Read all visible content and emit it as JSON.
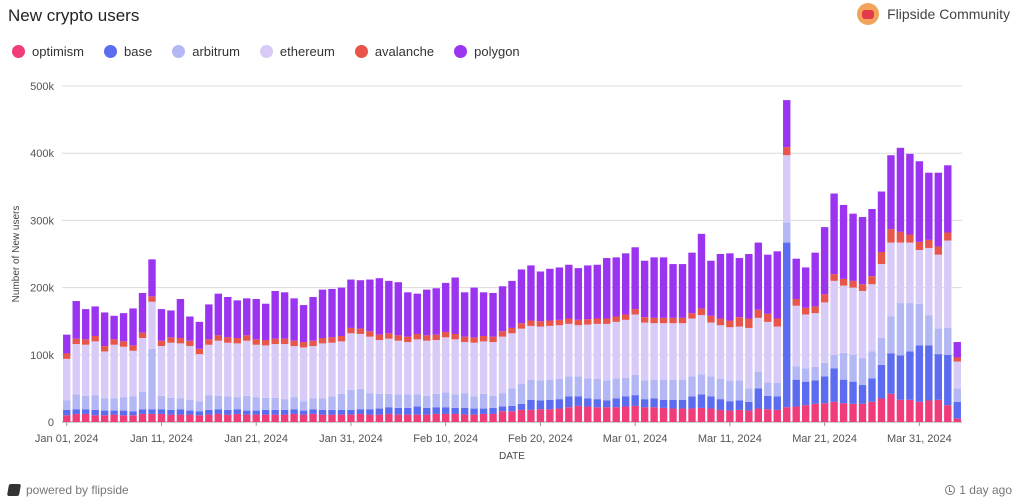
{
  "header": {
    "title": "New crypto users",
    "brand": "Flipside Community",
    "brand_icon": "flipside-community-avatar-icon"
  },
  "footer": {
    "powered_by": "powered by flipside",
    "updated": "1 day ago"
  },
  "colors": {
    "optimism": "#f03c7a",
    "base": "#5b6cf0",
    "arbitrum": "#b3b8f5",
    "ethereum": "#d9cbf7",
    "avalanche": "#e8554a",
    "polygon": "#9a34f0"
  },
  "chart_data": {
    "type": "bar",
    "stacked": true,
    "xlabel": "DATE",
    "ylabel": "Number of New users",
    "ylim": [
      0,
      500000
    ],
    "y_ticks": [
      0,
      100000,
      200000,
      300000,
      400000,
      500000
    ],
    "y_tick_labels": [
      "0",
      "100k",
      "200k",
      "300k",
      "400k",
      "500k"
    ],
    "x_tick_labels": [
      "Jan 01, 2024",
      "Jan 11, 2024",
      "Jan 21, 2024",
      "Jan 31, 2024",
      "Feb 10, 2024",
      "Feb 20, 2024",
      "Mar 01, 2024",
      "Mar 11, 2024",
      "Mar 21, 2024",
      "Mar 31, 2024"
    ],
    "x_tick_index": [
      0,
      10,
      20,
      30,
      40,
      50,
      60,
      70,
      80,
      90
    ],
    "legend_position": "top-left",
    "grid": true,
    "start_date": "2024-01-01",
    "series": [
      {
        "name": "optimism",
        "values": [
          10000,
          12000,
          12000,
          10000,
          10000,
          11000,
          10000,
          10000,
          12000,
          12000,
          12000,
          11000,
          11000,
          11000,
          10000,
          11000,
          12000,
          11000,
          12000,
          11000,
          11000,
          11000,
          11000,
          11000,
          12000,
          11000,
          12000,
          11000,
          11000,
          11000,
          11000,
          12000,
          11000,
          11000,
          12000,
          11000,
          11000,
          11000,
          11000,
          12000,
          12000,
          12000,
          11000,
          11000,
          12000,
          12000,
          16000,
          16000,
          18000,
          18000,
          19000,
          19000,
          20000,
          22000,
          24000,
          23000,
          22000,
          22000,
          22000,
          23000,
          24000,
          22000,
          22000,
          21000,
          20000,
          20000,
          20000,
          21000,
          20000,
          18000,
          17000,
          18000,
          17000,
          20000,
          19000,
          18000,
          22000,
          23000,
          25000,
          27000,
          28000,
          30000,
          28000,
          27000,
          27000,
          30000,
          35000,
          42000,
          33000,
          33000,
          30000,
          32000,
          33000,
          25000,
          5000
        ]
      },
      {
        "name": "base",
        "values": [
          8000,
          7000,
          7000,
          8000,
          7000,
          6000,
          7000,
          6000,
          7000,
          7000,
          7000,
          7000,
          8000,
          6000,
          6000,
          7000,
          7000,
          7000,
          7000,
          6000,
          6000,
          7000,
          7000,
          7000,
          7000,
          6000,
          7000,
          7000,
          7000,
          7000,
          7000,
          7000,
          8000,
          9000,
          10000,
          10000,
          10000,
          12000,
          10000,
          10000,
          10000,
          9000,
          10000,
          9000,
          8000,
          9000,
          7000,
          8000,
          9000,
          15000,
          13000,
          14000,
          14000,
          16000,
          14000,
          12000,
          12000,
          10000,
          13000,
          15000,
          16000,
          12000,
          13000,
          12000,
          13000,
          13000,
          18000,
          20000,
          18000,
          16000,
          14000,
          14000,
          13000,
          30000,
          20000,
          20000,
          245000,
          40000,
          35000,
          35000,
          40000,
          50000,
          35000,
          33000,
          28000,
          35000,
          50000,
          60000,
          66000,
          72000,
          84000,
          82000,
          68000,
          75000,
          25000
        ]
      },
      {
        "name": "arbitrum",
        "values": [
          14000,
          22000,
          20000,
          22000,
          18000,
          18000,
          20000,
          22000,
          26000,
          90000,
          20000,
          18000,
          16000,
          16000,
          15000,
          22000,
          20000,
          20000,
          18000,
          22000,
          20000,
          18000,
          18000,
          16000,
          18000,
          14000,
          16000,
          17000,
          20000,
          24000,
          30000,
          30000,
          24000,
          22000,
          20000,
          20000,
          20000,
          18000,
          18000,
          20000,
          22000,
          20000,
          22000,
          18000,
          22000,
          18000,
          20000,
          26000,
          30000,
          30000,
          30000,
          30000,
          30000,
          30000,
          30000,
          30000,
          30000,
          30000,
          30000,
          28000,
          30000,
          28000,
          28000,
          30000,
          30000,
          30000,
          30000,
          30000,
          30000,
          30000,
          30000,
          30000,
          20000,
          25000,
          20000,
          20000,
          30000,
          20000,
          20000,
          20000,
          20000,
          20000,
          40000,
          40000,
          40000,
          40000,
          40000,
          55000,
          78000,
          72000,
          62000,
          45000,
          38000,
          40000,
          20000
        ]
      },
      {
        "name": "ethereum",
        "values": [
          62000,
          75000,
          76000,
          80000,
          70000,
          80000,
          75000,
          68000,
          80000,
          70000,
          74000,
          82000,
          82000,
          80000,
          70000,
          75000,
          82000,
          80000,
          80000,
          82000,
          78000,
          78000,
          80000,
          82000,
          76000,
          80000,
          78000,
          82000,
          80000,
          78000,
          84000,
          82000,
          84000,
          80000,
          82000,
          80000,
          78000,
          82000,
          82000,
          80000,
          82000,
          82000,
          76000,
          80000,
          78000,
          80000,
          84000,
          82000,
          82000,
          80000,
          80000,
          80000,
          80000,
          78000,
          76000,
          80000,
          82000,
          84000,
          84000,
          86000,
          90000,
          86000,
          84000,
          84000,
          84000,
          84000,
          86000,
          88000,
          80000,
          80000,
          80000,
          80000,
          90000,
          80000,
          90000,
          84000,
          100000,
          90000,
          80000,
          80000,
          90000,
          110000,
          100000,
          100000,
          100000,
          100000,
          110000,
          110000,
          90000,
          90000,
          80000,
          100000,
          110000,
          130000,
          40000
        ]
      },
      {
        "name": "avalanche",
        "values": [
          8000,
          8000,
          8000,
          8000,
          8000,
          8000,
          8000,
          8000,
          8000,
          8000,
          8000,
          8000,
          8000,
          8000,
          8000,
          8000,
          8000,
          8000,
          8000,
          8000,
          8000,
          8000,
          8000,
          8000,
          8000,
          8000,
          8000,
          8000,
          8000,
          8000,
          8000,
          8000,
          8000,
          8000,
          8000,
          8000,
          8000,
          8000,
          8000,
          8000,
          8000,
          8000,
          8000,
          8000,
          8000,
          8000,
          8000,
          8000,
          8000,
          8000,
          8000,
          8000,
          8000,
          8000,
          8000,
          8000,
          8000,
          8000,
          8000,
          8000,
          8000,
          8000,
          8000,
          8000,
          8000,
          8000,
          8000,
          10000,
          10000,
          10000,
          10000,
          14000,
          14000,
          12000,
          12000,
          12000,
          12000,
          10000,
          10000,
          10000,
          12000,
          10000,
          10000,
          10000,
          10000,
          12000,
          18000,
          20000,
          16000,
          12000,
          12000,
          12000,
          12000,
          12000,
          6000
        ]
      },
      {
        "name": "polygon",
        "values": [
          28000,
          56000,
          45000,
          44000,
          50000,
          35000,
          42000,
          55000,
          59000,
          55000,
          47000,
          40000,
          58000,
          36000,
          40000,
          52000,
          62000,
          60000,
          56000,
          55000,
          60000,
          54000,
          71000,
          69000,
          63000,
          55000,
          65000,
          72000,
          72000,
          72000,
          72000,
          72000,
          77000,
          84000,
          78000,
          79000,
          66000,
          60000,
          68000,
          69000,
          73000,
          84000,
          66000,
          74000,
          65000,
          65000,
          67000,
          70000,
          80000,
          82000,
          74000,
          77000,
          78000,
          80000,
          77000,
          80000,
          80000,
          90000,
          88000,
          91000,
          92000,
          84000,
          90000,
          90000,
          80000,
          80000,
          90000,
          111000,
          82000,
          96000,
          100000,
          88000,
          96000,
          100000,
          88000,
          100000,
          70000,
          60000,
          60000,
          80000,
          100000,
          120000,
          110000,
          100000,
          100000,
          100000,
          90000,
          110000,
          125000,
          120000,
          120000,
          100000,
          110000,
          100000,
          23000
        ]
      }
    ]
  }
}
